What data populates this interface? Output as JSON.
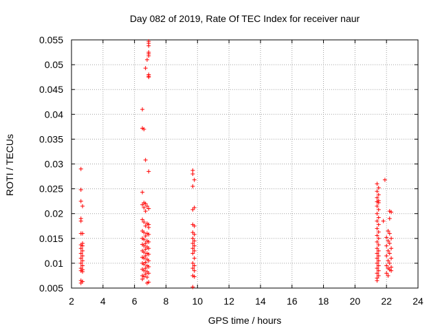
{
  "chart_data": {
    "type": "scatter",
    "title": "Day 082 of 2019, Rate Of TEC Index for receiver naur",
    "xlabel": "GPS time / hours",
    "ylabel": "ROTI / TECUs",
    "xlim": [
      2,
      24
    ],
    "ylim": [
      0.005,
      0.055
    ],
    "grid": true,
    "marker": "+",
    "marker_color": "#ff0000",
    "xticks": [
      "2",
      "4",
      "6",
      "8",
      "10",
      "12",
      "14",
      "16",
      "18",
      "20",
      "22",
      "24"
    ],
    "yticks": [
      "0.005",
      "0.01",
      "0.015",
      "0.02",
      "0.025",
      "0.03",
      "0.035",
      "0.04",
      "0.045",
      "0.05",
      "0.055"
    ],
    "points": [
      [
        2.6,
        0.029
      ],
      [
        2.6,
        0.0248
      ],
      [
        2.6,
        0.0225
      ],
      [
        2.7,
        0.0215
      ],
      [
        2.6,
        0.019
      ],
      [
        2.6,
        0.0185
      ],
      [
        2.7,
        0.016
      ],
      [
        2.6,
        0.016
      ],
      [
        2.7,
        0.014
      ],
      [
        2.6,
        0.0137
      ],
      [
        2.7,
        0.0135
      ],
      [
        2.6,
        0.013
      ],
      [
        2.7,
        0.0125
      ],
      [
        2.6,
        0.012
      ],
      [
        2.7,
        0.0115
      ],
      [
        2.6,
        0.011
      ],
      [
        2.7,
        0.0105
      ],
      [
        2.6,
        0.01
      ],
      [
        2.7,
        0.0095
      ],
      [
        2.6,
        0.009
      ],
      [
        2.7,
        0.0087
      ],
      [
        2.6,
        0.0085
      ],
      [
        2.7,
        0.0083
      ],
      [
        2.6,
        0.0065
      ],
      [
        2.7,
        0.0063
      ],
      [
        2.6,
        0.006
      ],
      [
        6.9,
        0.0547
      ],
      [
        6.9,
        0.0543
      ],
      [
        6.9,
        0.0538
      ],
      [
        6.9,
        0.0525
      ],
      [
        6.9,
        0.0522
      ],
      [
        6.9,
        0.0518
      ],
      [
        6.8,
        0.051
      ],
      [
        6.7,
        0.0493
      ],
      [
        6.9,
        0.048
      ],
      [
        6.9,
        0.0477
      ],
      [
        6.9,
        0.0475
      ],
      [
        6.5,
        0.041
      ],
      [
        6.5,
        0.0372
      ],
      [
        6.6,
        0.037
      ],
      [
        6.7,
        0.0308
      ],
      [
        6.9,
        0.0285
      ],
      [
        6.5,
        0.0243
      ],
      [
        6.6,
        0.0222
      ],
      [
        6.7,
        0.022
      ],
      [
        6.8,
        0.0215
      ],
      [
        6.9,
        0.021
      ],
      [
        6.5,
        0.0218
      ],
      [
        6.6,
        0.0212
      ],
      [
        6.7,
        0.0205
      ],
      [
        6.5,
        0.0188
      ],
      [
        6.6,
        0.0183
      ],
      [
        6.8,
        0.018
      ],
      [
        6.9,
        0.0178
      ],
      [
        6.7,
        0.0175
      ],
      [
        6.9,
        0.0172
      ],
      [
        6.5,
        0.0165
      ],
      [
        6.6,
        0.0162
      ],
      [
        6.8,
        0.016
      ],
      [
        6.9,
        0.0158
      ],
      [
        6.7,
        0.0155
      ],
      [
        6.5,
        0.015
      ],
      [
        6.6,
        0.0148
      ],
      [
        6.8,
        0.0145
      ],
      [
        6.9,
        0.0143
      ],
      [
        6.7,
        0.014
      ],
      [
        6.5,
        0.0138
      ],
      [
        6.6,
        0.0135
      ],
      [
        6.8,
        0.0133
      ],
      [
        6.9,
        0.013
      ],
      [
        6.7,
        0.0128
      ],
      [
        6.5,
        0.0125
      ],
      [
        6.6,
        0.0122
      ],
      [
        6.8,
        0.012
      ],
      [
        6.9,
        0.0118
      ],
      [
        6.7,
        0.0115
      ],
      [
        6.5,
        0.0112
      ],
      [
        6.6,
        0.011
      ],
      [
        6.8,
        0.0108
      ],
      [
        6.9,
        0.0105
      ],
      [
        6.7,
        0.0102
      ],
      [
        6.5,
        0.01
      ],
      [
        6.6,
        0.0098
      ],
      [
        6.8,
        0.0095
      ],
      [
        6.9,
        0.0093
      ],
      [
        6.7,
        0.009
      ],
      [
        6.5,
        0.0088
      ],
      [
        6.6,
        0.0085
      ],
      [
        6.8,
        0.0083
      ],
      [
        6.9,
        0.008
      ],
      [
        6.7,
        0.0078
      ],
      [
        6.5,
        0.0075
      ],
      [
        6.6,
        0.0073
      ],
      [
        6.8,
        0.0072
      ],
      [
        6.5,
        0.0068
      ],
      [
        6.9,
        0.0062
      ],
      [
        6.8,
        0.006
      ],
      [
        9.7,
        0.0287
      ],
      [
        9.7,
        0.028
      ],
      [
        9.8,
        0.0268
      ],
      [
        9.7,
        0.0255
      ],
      [
        9.8,
        0.0212
      ],
      [
        9.7,
        0.0208
      ],
      [
        9.7,
        0.0178
      ],
      [
        9.8,
        0.0175
      ],
      [
        9.7,
        0.0162
      ],
      [
        9.8,
        0.0158
      ],
      [
        9.7,
        0.015
      ],
      [
        9.8,
        0.0145
      ],
      [
        9.7,
        0.014
      ],
      [
        9.8,
        0.0135
      ],
      [
        9.7,
        0.013
      ],
      [
        9.8,
        0.0125
      ],
      [
        9.7,
        0.012
      ],
      [
        9.8,
        0.011
      ],
      [
        9.7,
        0.01
      ],
      [
        9.8,
        0.0095
      ],
      [
        9.7,
        0.009
      ],
      [
        9.8,
        0.0085
      ],
      [
        9.7,
        0.0075
      ],
      [
        9.8,
        0.0073
      ],
      [
        9.7,
        0.0052
      ],
      [
        21.4,
        0.026
      ],
      [
        21.5,
        0.0252
      ],
      [
        21.4,
        0.0245
      ],
      [
        21.5,
        0.0238
      ],
      [
        21.4,
        0.0232
      ],
      [
        21.5,
        0.0226
      ],
      [
        21.4,
        0.0224
      ],
      [
        21.5,
        0.0222
      ],
      [
        21.4,
        0.0215
      ],
      [
        21.5,
        0.0208
      ],
      [
        21.4,
        0.02
      ],
      [
        21.5,
        0.0192
      ],
      [
        21.4,
        0.0185
      ],
      [
        21.5,
        0.0178
      ],
      [
        21.4,
        0.017
      ],
      [
        21.5,
        0.0163
      ],
      [
        21.4,
        0.0156
      ],
      [
        21.5,
        0.015
      ],
      [
        21.4,
        0.0143
      ],
      [
        21.5,
        0.0137
      ],
      [
        21.4,
        0.013
      ],
      [
        21.5,
        0.0125
      ],
      [
        21.4,
        0.012
      ],
      [
        21.5,
        0.0115
      ],
      [
        21.4,
        0.011
      ],
      [
        21.5,
        0.0105
      ],
      [
        21.4,
        0.01
      ],
      [
        21.5,
        0.0095
      ],
      [
        21.4,
        0.009
      ],
      [
        21.5,
        0.0085
      ],
      [
        21.4,
        0.008
      ],
      [
        21.5,
        0.0075
      ],
      [
        21.4,
        0.007
      ],
      [
        21.4,
        0.0065
      ],
      [
        21.9,
        0.0268
      ],
      [
        21.8,
        0.0185
      ],
      [
        22.2,
        0.0205
      ],
      [
        22.3,
        0.0203
      ],
      [
        22.2,
        0.019
      ],
      [
        22.1,
        0.0165
      ],
      [
        22.2,
        0.016
      ],
      [
        22.0,
        0.0152
      ],
      [
        22.3,
        0.015
      ],
      [
        22.1,
        0.0145
      ],
      [
        22.2,
        0.014
      ],
      [
        22.0,
        0.0135
      ],
      [
        22.3,
        0.013
      ],
      [
        22.1,
        0.0125
      ],
      [
        22.2,
        0.012
      ],
      [
        22.0,
        0.0115
      ],
      [
        22.3,
        0.011
      ],
      [
        22.1,
        0.0105
      ],
      [
        22.2,
        0.01
      ],
      [
        22.0,
        0.0095
      ],
      [
        22.3,
        0.0092
      ],
      [
        22.1,
        0.009
      ],
      [
        22.2,
        0.0087
      ],
      [
        22.3,
        0.0085
      ],
      [
        22.0,
        0.008
      ],
      [
        22.1,
        0.0075
      ]
    ]
  }
}
